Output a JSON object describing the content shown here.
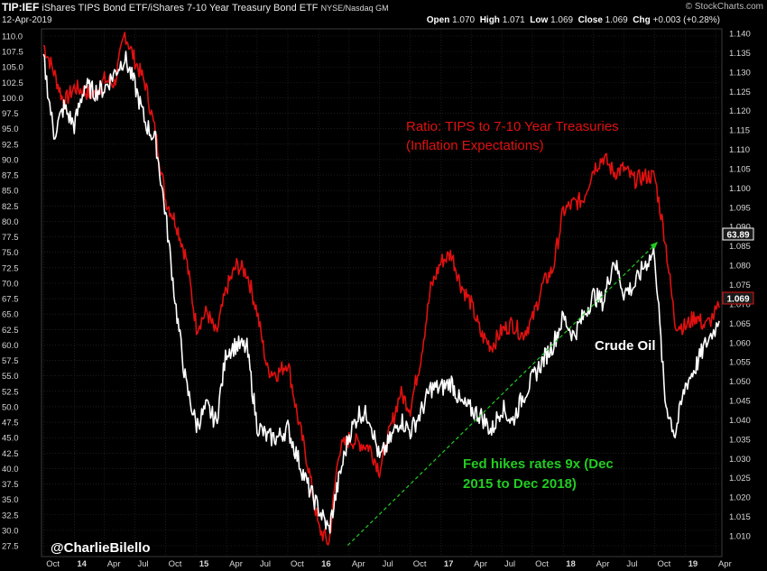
{
  "header": {
    "symbol": "TIP:IEF",
    "description": "iShares TIPS Bond ETF/iShares 7-10 Year Treasury Bond ETF",
    "exchange": "NYSE/Nasdaq GM",
    "date": "12-Apr-2019",
    "open_label": "Open",
    "open": "1.070",
    "high_label": "High",
    "high": "1.071",
    "low_label": "Low",
    "low": "1.069",
    "close_label": "Close",
    "close": "1.069",
    "chg_label": "Chg",
    "chg": "+0.003 (+0.28%)",
    "credit": "© StockCharts.com"
  },
  "annotations": {
    "ratio_title_line1": "Ratio: TIPS to 7-10 Year Treasuries",
    "ratio_title_line2": "(Inflation Expectations)",
    "crude_label": "Crude Oil",
    "fed_line1": "Fed hikes rates 9x (Dec",
    "fed_line2": "2015 to Dec 2018)",
    "author": "@CharlieBilello",
    "last_crude_badge": "63.89",
    "last_ratio_badge": "1.069"
  },
  "colors": {
    "ratio": "#e01010",
    "crude": "#ffffff",
    "fed_arrow": "#22cc22",
    "grid": "#2e2e2e",
    "background": "#000000"
  },
  "chart_data": {
    "type": "line",
    "x_ticks": [
      "Oct",
      "14",
      "Apr",
      "Jul",
      "Oct",
      "15",
      "Apr",
      "Jul",
      "Oct",
      "16",
      "Apr",
      "Jul",
      "Oct",
      "17",
      "Apr",
      "Jul",
      "Oct",
      "18",
      "Apr",
      "Jul",
      "Oct",
      "19",
      "Apr"
    ],
    "left_axis": {
      "series": "Crude Oil",
      "ticks": [
        "110.0",
        "107.5",
        "105.0",
        "102.5",
        "100.0",
        "97.5",
        "95.0",
        "92.5",
        "90.0",
        "87.5",
        "85.0",
        "82.5",
        "80.0",
        "77.5",
        "75.0",
        "72.5",
        "70.0",
        "67.5",
        "65.0",
        "62.5",
        "60.0",
        "57.5",
        "55.0",
        "52.5",
        "50.0",
        "47.5",
        "45.0",
        "42.5",
        "40.0",
        "37.5",
        "35.0",
        "32.5",
        "30.0",
        "27.5"
      ]
    },
    "right_axis": {
      "series": "TIP:IEF ratio",
      "ticks": [
        "1.140",
        "1.135",
        "1.130",
        "1.125",
        "1.120",
        "1.115",
        "1.110",
        "1.105",
        "1.100",
        "1.095",
        "1.090",
        "1.085",
        "1.080",
        "1.075",
        "1.070",
        "1.065",
        "1.060",
        "1.055",
        "1.050",
        "1.045",
        "1.040",
        "1.035",
        "1.030",
        "1.025",
        "1.020",
        "1.015",
        "1.010"
      ]
    },
    "series": [
      {
        "name": "TIP:IEF ratio",
        "axis": "right",
        "color": "#e01010",
        "points": [
          [
            "2013-10-01",
            1.137
          ],
          [
            "2013-11-01",
            1.13
          ],
          [
            "2013-12-01",
            1.122
          ],
          [
            "2014-01-01",
            1.126
          ],
          [
            "2014-02-01",
            1.125
          ],
          [
            "2014-03-01",
            1.124
          ],
          [
            "2014-04-01",
            1.128
          ],
          [
            "2014-05-01",
            1.127
          ],
          [
            "2014-06-01",
            1.14
          ],
          [
            "2014-07-01",
            1.133
          ],
          [
            "2014-08-01",
            1.127
          ],
          [
            "2014-09-01",
            1.114
          ],
          [
            "2014-10-01",
            1.097
          ],
          [
            "2014-11-01",
            1.091
          ],
          [
            "2014-12-01",
            1.082
          ],
          [
            "2015-01-01",
            1.064
          ],
          [
            "2015-02-01",
            1.068
          ],
          [
            "2015-03-01",
            1.062
          ],
          [
            "2015-04-01",
            1.074
          ],
          [
            "2015-05-01",
            1.08
          ],
          [
            "2015-06-01",
            1.078
          ],
          [
            "2015-07-01",
            1.068
          ],
          [
            "2015-08-01",
            1.053
          ],
          [
            "2015-09-01",
            1.052
          ],
          [
            "2015-10-01",
            1.055
          ],
          [
            "2015-11-01",
            1.04
          ],
          [
            "2015-12-01",
            1.028
          ],
          [
            "2016-01-01",
            1.012
          ],
          [
            "2016-02-01",
            1.008
          ],
          [
            "2016-03-01",
            1.032
          ],
          [
            "2016-04-01",
            1.035
          ],
          [
            "2016-05-01",
            1.034
          ],
          [
            "2016-06-01",
            1.033
          ],
          [
            "2016-07-01",
            1.027
          ],
          [
            "2016-08-01",
            1.037
          ],
          [
            "2016-09-01",
            1.047
          ],
          [
            "2016-10-01",
            1.043
          ],
          [
            "2016-11-01",
            1.056
          ],
          [
            "2016-12-01",
            1.074
          ],
          [
            "2017-01-01",
            1.081
          ],
          [
            "2017-02-01",
            1.083
          ],
          [
            "2017-03-01",
            1.075
          ],
          [
            "2017-04-01",
            1.07
          ],
          [
            "2017-05-01",
            1.062
          ],
          [
            "2017-06-01",
            1.059
          ],
          [
            "2017-07-01",
            1.063
          ],
          [
            "2017-08-01",
            1.065
          ],
          [
            "2017-09-01",
            1.062
          ],
          [
            "2017-10-01",
            1.066
          ],
          [
            "2017-11-01",
            1.075
          ],
          [
            "2017-12-01",
            1.079
          ],
          [
            "2018-01-01",
            1.094
          ],
          [
            "2018-02-01",
            1.096
          ],
          [
            "2018-03-01",
            1.097
          ],
          [
            "2018-04-01",
            1.105
          ],
          [
            "2018-05-01",
            1.108
          ],
          [
            "2018-06-01",
            1.104
          ],
          [
            "2018-07-01",
            1.105
          ],
          [
            "2018-08-01",
            1.102
          ],
          [
            "2018-09-01",
            1.103
          ],
          [
            "2018-10-01",
            1.103
          ],
          [
            "2018-11-01",
            1.087
          ],
          [
            "2018-12-01",
            1.065
          ],
          [
            "2019-01-01",
            1.064
          ],
          [
            "2019-02-01",
            1.067
          ],
          [
            "2019-03-01",
            1.064
          ],
          [
            "2019-04-12",
            1.069
          ]
        ]
      },
      {
        "name": "Crude Oil",
        "axis": "left",
        "color": "#ffffff",
        "points": [
          [
            "2013-10-01",
            106.5
          ],
          [
            "2013-11-01",
            94.0
          ],
          [
            "2013-12-01",
            98.5
          ],
          [
            "2014-01-01",
            95.5
          ],
          [
            "2014-02-01",
            102.0
          ],
          [
            "2014-03-01",
            101.0
          ],
          [
            "2014-04-01",
            101.5
          ],
          [
            "2014-05-01",
            104.0
          ],
          [
            "2014-06-01",
            106.5
          ],
          [
            "2014-07-01",
            102.0
          ],
          [
            "2014-08-01",
            96.0
          ],
          [
            "2014-09-01",
            93.0
          ],
          [
            "2014-10-01",
            81.0
          ],
          [
            "2014-11-01",
            66.0
          ],
          [
            "2014-12-01",
            53.5
          ],
          [
            "2015-01-01",
            47.0
          ],
          [
            "2015-02-01",
            50.0
          ],
          [
            "2015-03-01",
            47.5
          ],
          [
            "2015-04-01",
            59.0
          ],
          [
            "2015-05-01",
            60.0
          ],
          [
            "2015-06-01",
            59.5
          ],
          [
            "2015-07-01",
            47.0
          ],
          [
            "2015-08-01",
            45.0
          ],
          [
            "2015-09-01",
            45.0
          ],
          [
            "2015-10-01",
            46.5
          ],
          [
            "2015-11-01",
            41.5
          ],
          [
            "2015-12-01",
            37.0
          ],
          [
            "2016-01-01",
            33.5
          ],
          [
            "2016-02-01",
            30.0
          ],
          [
            "2016-03-01",
            38.0
          ],
          [
            "2016-04-01",
            45.5
          ],
          [
            "2016-05-01",
            49.0
          ],
          [
            "2016-06-01",
            48.5
          ],
          [
            "2016-07-01",
            41.5
          ],
          [
            "2016-08-01",
            44.5
          ],
          [
            "2016-09-01",
            48.0
          ],
          [
            "2016-10-01",
            46.0
          ],
          [
            "2016-11-01",
            49.0
          ],
          [
            "2016-12-01",
            53.0
          ],
          [
            "2017-01-01",
            53.0
          ],
          [
            "2017-02-01",
            54.0
          ],
          [
            "2017-03-01",
            50.5
          ],
          [
            "2017-04-01",
            49.5
          ],
          [
            "2017-05-01",
            48.5
          ],
          [
            "2017-06-01",
            46.0
          ],
          [
            "2017-07-01",
            50.0
          ],
          [
            "2017-08-01",
            47.5
          ],
          [
            "2017-09-01",
            51.5
          ],
          [
            "2017-10-01",
            54.5
          ],
          [
            "2017-11-01",
            57.5
          ],
          [
            "2017-12-01",
            60.0
          ],
          [
            "2018-01-01",
            64.5
          ],
          [
            "2018-02-01",
            61.5
          ],
          [
            "2018-03-01",
            64.5
          ],
          [
            "2018-04-01",
            68.0
          ],
          [
            "2018-05-01",
            67.0
          ],
          [
            "2018-06-01",
            74.0
          ],
          [
            "2018-07-01",
            68.5
          ],
          [
            "2018-08-01",
            69.5
          ],
          [
            "2018-09-01",
            73.0
          ],
          [
            "2018-10-01",
            75.0
          ],
          [
            "2018-11-01",
            51.0
          ],
          [
            "2018-12-01",
            45.5
          ],
          [
            "2019-01-01",
            53.5
          ],
          [
            "2019-02-01",
            56.5
          ],
          [
            "2019-03-01",
            60.0
          ],
          [
            "2019-04-12",
            63.89
          ]
        ]
      }
    ],
    "fed_arrow": {
      "from": [
        "2016-03-01",
        1.008
      ],
      "to": [
        "2018-11-01",
        1.087
      ]
    },
    "grid": true
  }
}
